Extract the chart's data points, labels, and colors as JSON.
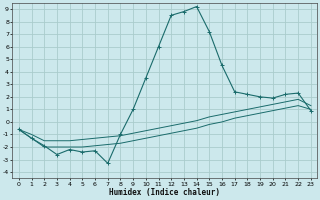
{
  "xlabel": "Humidex (Indice chaleur)",
  "bg_color": "#cce8ec",
  "grid_color": "#aacccc",
  "line_color": "#1a6b6b",
  "xlim": [
    -0.5,
    23.5
  ],
  "ylim": [
    -4.5,
    9.5
  ],
  "xticks": [
    0,
    1,
    2,
    3,
    4,
    5,
    6,
    7,
    8,
    9,
    10,
    11,
    12,
    13,
    14,
    15,
    16,
    17,
    18,
    19,
    20,
    21,
    22,
    23
  ],
  "yticks": [
    -4,
    -3,
    -2,
    -1,
    0,
    1,
    2,
    3,
    4,
    5,
    6,
    7,
    8,
    9
  ],
  "s1_x": [
    0,
    1,
    2,
    3,
    4,
    5,
    6,
    7,
    8,
    9,
    10,
    11,
    12,
    13,
    14,
    15,
    16,
    17,
    18,
    19,
    20,
    21,
    22,
    23
  ],
  "s1_y": [
    -0.6,
    -1.3,
    -1.9,
    -2.6,
    -2.2,
    -2.4,
    -2.3,
    -3.3,
    -1.0,
    1.0,
    3.5,
    6.0,
    8.5,
    8.8,
    9.2,
    7.2,
    4.5,
    2.4,
    2.2,
    2.0,
    1.9,
    2.2,
    2.3,
    0.9
  ],
  "s2_x": [
    0,
    1,
    2,
    3,
    4,
    5,
    6,
    7,
    8,
    9,
    10,
    11,
    12,
    13,
    14,
    15,
    16,
    17,
    18,
    19,
    20,
    21,
    22,
    23
  ],
  "s2_y": [
    -0.6,
    -1.3,
    -2.0,
    -2.0,
    -2.0,
    -2.0,
    -1.9,
    -1.8,
    -1.7,
    -1.5,
    -1.3,
    -1.1,
    -0.9,
    -0.7,
    -0.5,
    -0.2,
    0.0,
    0.3,
    0.5,
    0.7,
    0.9,
    1.1,
    1.3,
    1.0
  ],
  "s3_x": [
    0,
    1,
    2,
    3,
    4,
    5,
    6,
    7,
    8,
    9,
    10,
    11,
    12,
    13,
    14,
    15,
    16,
    17,
    18,
    19,
    20,
    21,
    22,
    23
  ],
  "s3_y": [
    -0.6,
    -1.0,
    -1.5,
    -1.5,
    -1.5,
    -1.4,
    -1.3,
    -1.2,
    -1.1,
    -0.9,
    -0.7,
    -0.5,
    -0.3,
    -0.1,
    0.1,
    0.4,
    0.6,
    0.8,
    1.0,
    1.2,
    1.4,
    1.6,
    1.8,
    1.3
  ]
}
